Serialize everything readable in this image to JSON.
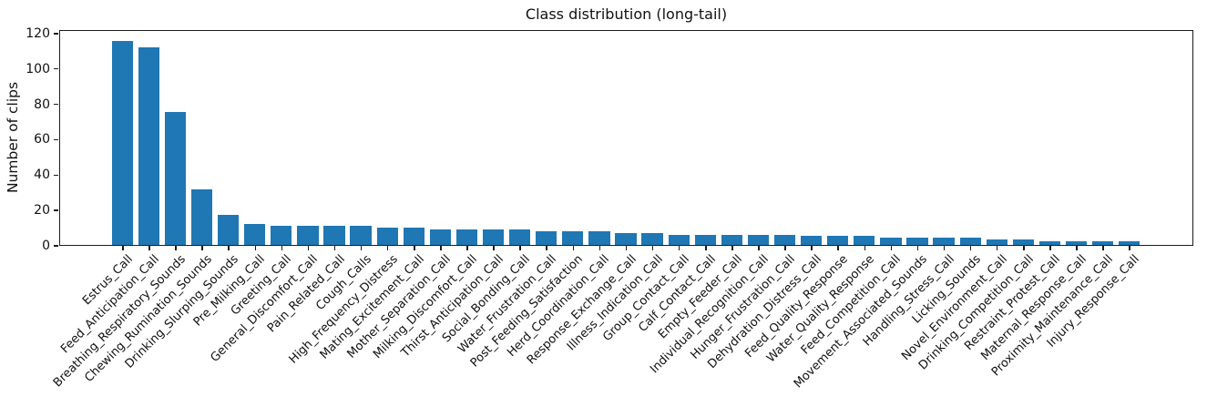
{
  "chart_data": {
    "type": "bar",
    "title": "Class distribution (long-tail)",
    "xlabel": "",
    "ylabel": "Number of clips",
    "ylim": [
      0,
      122
    ],
    "yticks": [
      0,
      20,
      40,
      60,
      80,
      100,
      120
    ],
    "grid": false,
    "legend": "none",
    "bar_color": "#1f77b4",
    "categories": [
      "Estrus_Call",
      "Feed_Anticipation_Call",
      "Breathing_Respiratory_Sounds",
      "Chewing_Rumination_Sounds",
      "Drinking_Slurping_Sounds",
      "Pre_Milking_Call",
      "Greeting_Call",
      "General_Discomfort_Call",
      "Pain_Related_Call",
      "Cough_Calls",
      "High_Frequency_Distress",
      "Mating_Excitement_Call",
      "Mother_Separation_Call",
      "Milking_Discomfort_Call",
      "Thirst_Anticipation_Call",
      "Social_Bonding_Call",
      "Water_Frustration_Call",
      "Post_Feeding_Satisfaction",
      "Herd_Coordination_Call",
      "Response_Exchange_Call",
      "Illness_Indication_Call",
      "Group_Contact_Call",
      "Calf_Contact_Call",
      "Empty_Feeder_Call",
      "Individual_Recognition_Call",
      "Hunger_Frustration_Call",
      "Dehydration_Distress_Call",
      "Feed_Quality_Response",
      "Water_Quality_Response",
      "Feed_Competition_Call",
      "Movement_Associated_Sounds",
      "Handling_Stress_Call",
      "Licking_Sounds",
      "Novel_Environment_Call",
      "Drinking_Competition_Call",
      "Restraint_Protest_Call",
      "Maternal_Response_Call",
      "Proximity_Maintenance_Call",
      "Injury_Response_Call"
    ],
    "values": [
      117,
      113,
      76,
      32,
      17,
      12,
      11,
      11,
      11,
      11,
      10,
      10,
      9,
      9,
      9,
      9,
      8,
      8,
      8,
      7,
      7,
      6,
      6,
      6,
      6,
      6,
      5,
      5,
      5,
      4,
      4,
      4,
      4,
      3,
      3,
      2,
      2,
      2,
      2
    ]
  }
}
